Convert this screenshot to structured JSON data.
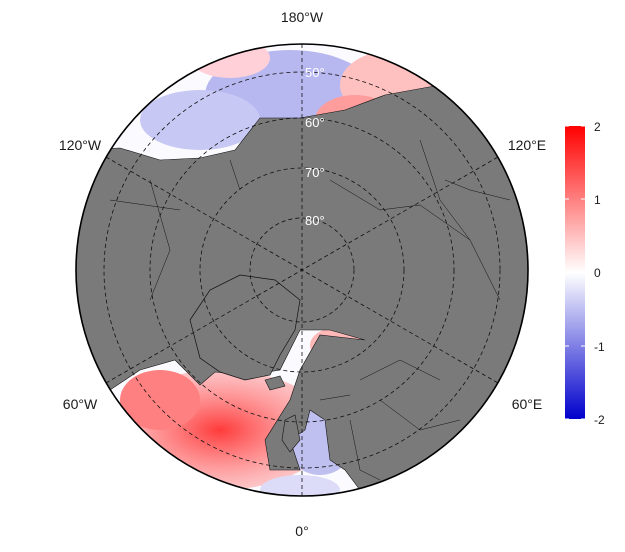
{
  "map": {
    "projection": "north-polar-stereographic",
    "land_color": "#7a7a7a",
    "border_color": "#000000",
    "longitude_labels": {
      "top": "180°W",
      "bottom": "0°",
      "upper_left": "120°W",
      "upper_right": "120°E",
      "lower_left": "60°W",
      "lower_right": "60°E"
    },
    "latitude_labels": [
      "50°",
      "60°",
      "70°",
      "80°"
    ]
  },
  "colorbar": {
    "ticks": [
      "2",
      "1",
      "0",
      "-1",
      "-2"
    ],
    "min": -2,
    "max": 2,
    "colors": {
      "high": "#ff0000",
      "mid": "#ffffff",
      "low": "#0000cc"
    }
  }
}
